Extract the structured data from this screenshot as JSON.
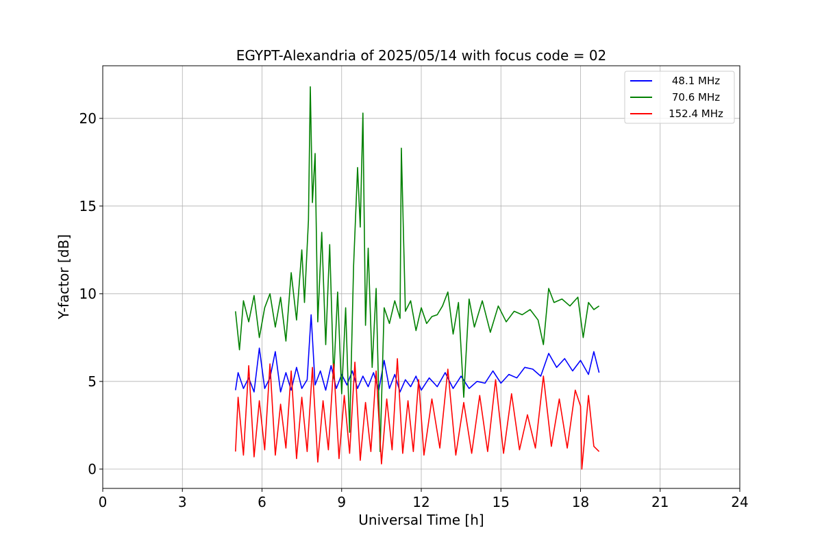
{
  "chart_data": {
    "type": "line",
    "title": "EGYPT-Alexandria of 2025/05/14 with focus code = 02",
    "xlabel": "Universal Time [h]",
    "ylabel": "Y-factor [dB]",
    "xlim": [
      0,
      24
    ],
    "ylim": [
      -1.1,
      23
    ],
    "xticks": [
      0,
      3,
      6,
      9,
      12,
      15,
      18,
      21,
      24
    ],
    "yticks": [
      0,
      5,
      10,
      15,
      20
    ],
    "grid": true,
    "legend_position": "top-right",
    "series": [
      {
        "name": "48.1 MHz",
        "color": "#0000ff",
        "x": [
          5.0,
          5.1,
          5.3,
          5.5,
          5.7,
          5.9,
          6.1,
          6.3,
          6.5,
          6.7,
          6.9,
          7.1,
          7.3,
          7.5,
          7.7,
          7.85,
          8.0,
          8.2,
          8.4,
          8.6,
          8.8,
          9.0,
          9.2,
          9.4,
          9.6,
          9.8,
          10.0,
          10.2,
          10.4,
          10.6,
          10.8,
          11.0,
          11.2,
          11.4,
          11.6,
          11.8,
          12.0,
          12.3,
          12.6,
          12.9,
          13.2,
          13.5,
          13.8,
          14.1,
          14.4,
          14.7,
          15.0,
          15.3,
          15.6,
          15.9,
          16.2,
          16.5,
          16.8,
          17.1,
          17.4,
          17.7,
          18.0,
          18.3,
          18.5,
          18.7
        ],
        "y": [
          4.5,
          5.5,
          4.6,
          5.2,
          4.4,
          6.9,
          4.6,
          5.2,
          6.7,
          4.4,
          5.5,
          4.5,
          5.8,
          4.6,
          5.1,
          8.8,
          4.8,
          5.6,
          4.5,
          5.9,
          4.6,
          5.4,
          4.8,
          5.6,
          4.6,
          5.3,
          4.7,
          5.5,
          4.5,
          6.2,
          4.6,
          5.4,
          4.4,
          5.1,
          4.7,
          5.3,
          4.5,
          5.2,
          4.7,
          5.5,
          4.6,
          5.3,
          4.6,
          5.0,
          4.9,
          5.6,
          4.9,
          5.4,
          5.2,
          5.8,
          5.7,
          5.3,
          6.6,
          5.8,
          6.3,
          5.6,
          6.2,
          5.4,
          6.7,
          5.5
        ]
      },
      {
        "name": "70.6 MHz",
        "color": "#008000",
        "x": [
          5.0,
          5.15,
          5.3,
          5.5,
          5.7,
          5.9,
          6.1,
          6.3,
          6.5,
          6.7,
          6.9,
          7.1,
          7.3,
          7.5,
          7.6,
          7.75,
          7.82,
          7.9,
          8.0,
          8.1,
          8.25,
          8.4,
          8.55,
          8.7,
          8.85,
          9.0,
          9.15,
          9.3,
          9.45,
          9.6,
          9.7,
          9.8,
          9.9,
          10.0,
          10.15,
          10.3,
          10.45,
          10.6,
          10.8,
          11.0,
          11.2,
          11.25,
          11.4,
          11.6,
          11.8,
          12.0,
          12.2,
          12.4,
          12.6,
          12.8,
          13.0,
          13.2,
          13.4,
          13.6,
          13.8,
          14.0,
          14.3,
          14.6,
          14.9,
          15.2,
          15.5,
          15.8,
          16.1,
          16.4,
          16.6,
          16.8,
          17.0,
          17.3,
          17.6,
          17.9,
          18.1,
          18.3,
          18.5,
          18.7
        ],
        "y": [
          9.0,
          6.8,
          9.6,
          8.4,
          9.9,
          7.5,
          9.2,
          10.0,
          8.1,
          9.8,
          7.3,
          11.2,
          8.5,
          12.5,
          9.5,
          14.2,
          21.8,
          15.2,
          18.0,
          8.4,
          13.5,
          7.1,
          12.8,
          5.2,
          10.1,
          4.3,
          9.2,
          2.1,
          11.6,
          17.2,
          13.8,
          20.3,
          8.2,
          12.6,
          5.8,
          10.3,
          1.0,
          9.2,
          8.3,
          9.6,
          8.6,
          18.3,
          9.0,
          9.6,
          7.9,
          9.2,
          8.3,
          8.7,
          8.8,
          9.3,
          10.1,
          7.7,
          9.5,
          4.1,
          9.7,
          8.1,
          9.6,
          7.8,
          9.3,
          8.4,
          9.0,
          8.8,
          9.1,
          8.5,
          7.1,
          10.3,
          9.5,
          9.7,
          9.3,
          9.8,
          7.5,
          9.5,
          9.1,
          9.3
        ]
      },
      {
        "name": "152.4 MHz",
        "color": "#ff0000",
        "x": [
          5.0,
          5.1,
          5.3,
          5.5,
          5.7,
          5.9,
          6.1,
          6.3,
          6.5,
          6.7,
          6.9,
          7.1,
          7.3,
          7.5,
          7.7,
          7.9,
          8.1,
          8.3,
          8.5,
          8.7,
          8.9,
          9.1,
          9.3,
          9.5,
          9.7,
          9.9,
          10.1,
          10.3,
          10.5,
          10.7,
          10.9,
          11.1,
          11.3,
          11.5,
          11.7,
          11.9,
          12.1,
          12.4,
          12.7,
          13.0,
          13.3,
          13.6,
          13.9,
          14.2,
          14.5,
          14.8,
          15.1,
          15.4,
          15.7,
          16.0,
          16.3,
          16.6,
          16.9,
          17.2,
          17.5,
          17.8,
          18.0,
          18.05,
          18.3,
          18.5,
          18.7
        ],
        "y": [
          1.0,
          4.1,
          0.8,
          5.9,
          0.7,
          3.9,
          1.1,
          6.0,
          0.8,
          3.7,
          1.2,
          5.6,
          0.6,
          4.1,
          1.0,
          5.8,
          0.4,
          3.9,
          1.1,
          6.0,
          0.6,
          4.2,
          0.9,
          6.1,
          0.5,
          3.8,
          1.0,
          5.6,
          0.3,
          4.0,
          1.1,
          6.3,
          0.9,
          3.9,
          1.0,
          5.1,
          0.8,
          4.0,
          1.2,
          5.7,
          0.8,
          3.8,
          0.9,
          4.2,
          1.0,
          5.1,
          0.9,
          4.3,
          1.1,
          3.1,
          1.2,
          5.3,
          1.3,
          4.0,
          1.2,
          4.5,
          3.6,
          0.0,
          4.2,
          1.3,
          1.0
        ]
      }
    ]
  }
}
